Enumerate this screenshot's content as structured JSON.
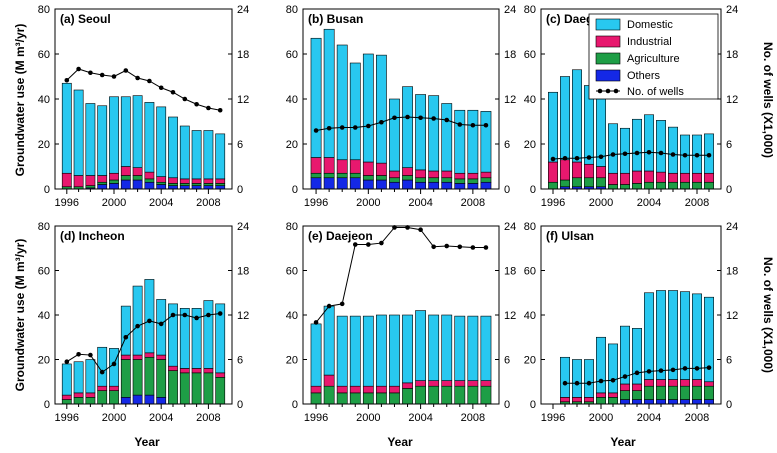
{
  "figure": {
    "left_axis_label": "Groundwater use (M m³/yr)",
    "right_axis_label": "No. of wells (X1,000)",
    "x_axis_label": "Year",
    "legend": {
      "entries": [
        {
          "label": "Domestic",
          "color": "#28c8f0"
        },
        {
          "label": "Industrial",
          "color": "#e8186e"
        },
        {
          "label": "Agriculture",
          "color": "#1e9e46"
        },
        {
          "label": "Others",
          "color": "#1428e6"
        },
        {
          "label": "No. of wells",
          "color": "#000000"
        }
      ]
    }
  },
  "chart_data": [
    {
      "type": "bar",
      "title": "(a) Seoul",
      "years": [
        1996,
        1997,
        1998,
        1999,
        2000,
        2001,
        2002,
        2003,
        2004,
        2005,
        2006,
        2007,
        2008,
        2009
      ],
      "x_ticks": [
        1996,
        2000,
        2004,
        2008
      ],
      "ylim": [
        0,
        80
      ],
      "y_ticks": [
        0,
        20,
        40,
        60,
        80
      ],
      "y2lim": [
        0,
        24
      ],
      "y2_ticks": [
        0,
        6,
        12,
        18,
        24
      ],
      "series": [
        {
          "name": "Others",
          "values": [
            0,
            0,
            0.5,
            2,
            2.5,
            4,
            4,
            3,
            2,
            1.5,
            1.5,
            1.5,
            1.5,
            1.5
          ]
        },
        {
          "name": "Agriculture",
          "values": [
            1,
            1,
            1,
            1,
            1.5,
            2,
            2,
            1.5,
            1,
            1,
            1,
            1,
            1,
            1
          ]
        },
        {
          "name": "Industrial",
          "values": [
            6,
            5,
            4.5,
            3,
            3,
            4,
            3.5,
            3,
            2.5,
            2.5,
            2,
            2,
            2,
            2
          ]
        },
        {
          "name": "Domestic",
          "values": [
            40,
            38,
            32,
            31,
            34,
            31,
            32,
            31,
            31,
            27,
            23.5,
            21.5,
            21.5,
            20
          ]
        }
      ],
      "wells": [
        14.5,
        16,
        15.5,
        15.2,
        15,
        15.8,
        14.8,
        14.4,
        13.5,
        12.9,
        12,
        11.3,
        10.8,
        10.5
      ]
    },
    {
      "type": "bar",
      "title": "(b) Busan",
      "years": [
        1996,
        1997,
        1998,
        1999,
        2000,
        2001,
        2002,
        2003,
        2004,
        2005,
        2006,
        2007,
        2008,
        2009
      ],
      "x_ticks": [
        1996,
        2000,
        2004,
        2008
      ],
      "ylim": [
        0,
        80
      ],
      "y_ticks": [
        0,
        20,
        40,
        60,
        80
      ],
      "y2lim": [
        0,
        24
      ],
      "y2_ticks": [
        0,
        6,
        12,
        18,
        24
      ],
      "series": [
        {
          "name": "Others",
          "values": [
            5,
            5,
            5,
            5,
            4,
            4,
            3,
            4,
            3,
            3,
            3,
            2.5,
            2.5,
            3
          ]
        },
        {
          "name": "Agriculture",
          "values": [
            2,
            2,
            2,
            2,
            2,
            2,
            2,
            2,
            2,
            2,
            2,
            2,
            2,
            2
          ]
        },
        {
          "name": "Industrial",
          "values": [
            7,
            7,
            6,
            6,
            6,
            5.5,
            3,
            3.5,
            3.5,
            3,
            3,
            2.5,
            2.5,
            2.5
          ]
        },
        {
          "name": "Domestic",
          "values": [
            53,
            57,
            51,
            43,
            48,
            48,
            32,
            36,
            33.5,
            33.5,
            30,
            28,
            28,
            27
          ]
        }
      ],
      "wells": [
        7.8,
        8.1,
        8.2,
        8.2,
        8.4,
        8.9,
        9.5,
        9.6,
        9.5,
        9.4,
        9.2,
        8.6,
        8.5,
        8.5
      ]
    },
    {
      "type": "bar",
      "title": "(c) Daegu",
      "years": [
        1996,
        1997,
        1998,
        1999,
        2000,
        2001,
        2002,
        2003,
        2004,
        2005,
        2006,
        2007,
        2008,
        2009
      ],
      "x_ticks": [
        1996,
        2000,
        2004,
        2008
      ],
      "ylim": [
        0,
        80
      ],
      "y_ticks": [
        0,
        20,
        40,
        60,
        80
      ],
      "y2lim": [
        0,
        24
      ],
      "y2_ticks": [
        0,
        6,
        12,
        18,
        24
      ],
      "series": [
        {
          "name": "Others",
          "values": [
            0,
            1,
            1,
            1,
            1,
            0,
            0,
            0,
            0,
            0,
            0,
            0,
            0,
            0
          ]
        },
        {
          "name": "Agriculture",
          "values": [
            3,
            3,
            4,
            4,
            4,
            2,
            2,
            2.5,
            3,
            3,
            3,
            3,
            3,
            3
          ]
        },
        {
          "name": "Industrial",
          "values": [
            9,
            9,
            7,
            6,
            5,
            5,
            5,
            5.5,
            5,
            4.5,
            4,
            4,
            4,
            4
          ]
        },
        {
          "name": "Domestic",
          "values": [
            31,
            37,
            41,
            35,
            35,
            22,
            20,
            23,
            25,
            23,
            20.5,
            17,
            17,
            17.5
          ]
        }
      ],
      "wells": [
        4,
        4.1,
        4.1,
        4.2,
        4.3,
        4.6,
        4.7,
        4.8,
        4.9,
        4.8,
        4.6,
        4.5,
        4.5,
        4.5
      ]
    },
    {
      "type": "bar",
      "title": "(d) Incheon",
      "years": [
        1996,
        1997,
        1998,
        1999,
        2000,
        2001,
        2002,
        2003,
        2004,
        2005,
        2006,
        2007,
        2008,
        2009
      ],
      "x_ticks": [
        1996,
        2000,
        2004,
        2008
      ],
      "ylim": [
        0,
        80
      ],
      "y_ticks": [
        0,
        20,
        40,
        60,
        80
      ],
      "y2lim": [
        0,
        24
      ],
      "y2_ticks": [
        0,
        6,
        12,
        18,
        24
      ],
      "series": [
        {
          "name": "Others",
          "values": [
            0,
            0,
            0,
            0,
            0,
            3,
            4,
            4,
            3,
            0,
            0,
            0,
            0,
            0
          ]
        },
        {
          "name": "Agriculture",
          "values": [
            2,
            3,
            3,
            6,
            6,
            17,
            16,
            17,
            17,
            15,
            14,
            14,
            14,
            12
          ]
        },
        {
          "name": "Industrial",
          "values": [
            2,
            2,
            2,
            2,
            2,
            2,
            2,
            2,
            2,
            2,
            2,
            2,
            2,
            2
          ]
        },
        {
          "name": "Domestic",
          "values": [
            14,
            14,
            15,
            17.5,
            17,
            22,
            31,
            33,
            25,
            28,
            27,
            27,
            30.5,
            31
          ]
        }
      ],
      "wells": [
        5.7,
        6.7,
        6.6,
        4.3,
        5.4,
        9,
        10.5,
        11.2,
        10.8,
        12,
        12,
        11.6,
        12,
        12.2
      ]
    },
    {
      "type": "bar",
      "title": "(e) Daejeon",
      "years": [
        1996,
        1997,
        1998,
        1999,
        2000,
        2001,
        2002,
        2003,
        2004,
        2005,
        2006,
        2007,
        2008,
        2009
      ],
      "x_ticks": [
        1996,
        2000,
        2004,
        2008
      ],
      "ylim": [
        0,
        80
      ],
      "y_ticks": [
        0,
        20,
        40,
        60,
        80
      ],
      "y2lim": [
        0,
        24
      ],
      "y2_ticks": [
        0,
        6,
        12,
        18,
        24
      ],
      "series": [
        {
          "name": "Others",
          "values": [
            0,
            0,
            0,
            0,
            0,
            0,
            0,
            0,
            0,
            0,
            0,
            0,
            0,
            0
          ]
        },
        {
          "name": "Agriculture",
          "values": [
            5,
            8,
            5,
            5,
            5,
            5,
            5,
            7,
            8,
            8,
            8,
            8,
            8,
            8
          ]
        },
        {
          "name": "Industrial",
          "values": [
            3,
            5,
            3,
            3,
            3,
            3,
            3,
            2.5,
            2.5,
            2.5,
            2.5,
            2.5,
            2.5,
            2.5
          ]
        },
        {
          "name": "Domestic",
          "values": [
            28,
            31,
            31.5,
            31.5,
            31.5,
            32,
            32,
            30.5,
            31.5,
            29.5,
            29.5,
            29,
            29,
            29
          ]
        }
      ],
      "wells": [
        11,
        13.2,
        13.5,
        21.5,
        21.5,
        21.7,
        23.8,
        23.8,
        23.5,
        21.2,
        21.3,
        21.2,
        21.1,
        21.1
      ]
    },
    {
      "type": "bar",
      "title": "(f) Ulsan",
      "years": [
        1996,
        1997,
        1998,
        1999,
        2000,
        2001,
        2002,
        2003,
        2004,
        2005,
        2006,
        2007,
        2008,
        2009
      ],
      "x_ticks": [
        1996,
        2000,
        2004,
        2008
      ],
      "ylim": [
        0,
        80
      ],
      "y_ticks": [
        0,
        20,
        40,
        60,
        80
      ],
      "y2lim": [
        0,
        24
      ],
      "y2_ticks": [
        0,
        6,
        12,
        18,
        24
      ],
      "series": [
        {
          "name": "Others",
          "values": [
            0,
            0,
            0,
            0,
            0,
            0,
            2,
            2,
            2,
            2,
            2,
            2,
            2,
            2
          ]
        },
        {
          "name": "Agriculture",
          "values": [
            0,
            1,
            1,
            1,
            3,
            3,
            4,
            4,
            6,
            6,
            6,
            6,
            6,
            6
          ]
        },
        {
          "name": "Industrial",
          "values": [
            0,
            2,
            2,
            2,
            2,
            2,
            3,
            3,
            3,
            3,
            3,
            3,
            3,
            2
          ]
        },
        {
          "name": "Domestic",
          "values": [
            0,
            18,
            17,
            17,
            25,
            22,
            26,
            25,
            39,
            40,
            40,
            39.5,
            38.5,
            38
          ]
        }
      ],
      "wells": [
        null,
        2.8,
        2.8,
        2.8,
        3.1,
        3.2,
        3.7,
        4.2,
        4.4,
        4.5,
        4.6,
        4.8,
        4.8,
        4.9
      ]
    }
  ]
}
